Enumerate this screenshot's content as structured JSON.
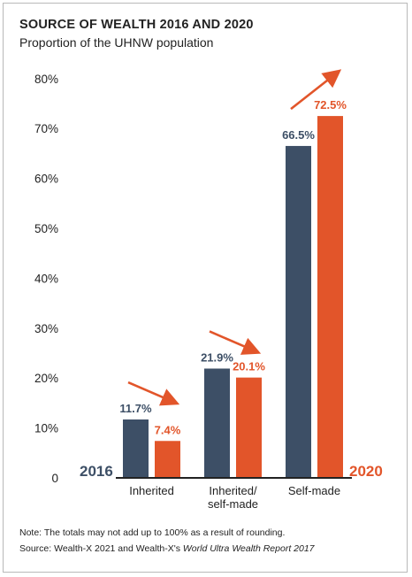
{
  "title": "SOURCE OF WEALTH 2016 AND 2020",
  "subtitle": "Proportion of the UHNW population",
  "note": "Note: The totals may not add up to 100% as a result of rounding.",
  "source_prefix": "Source: Wealth-X 2021 and Wealth-X's ",
  "source_italic": "World Ultra Wealth Report 2017",
  "colors": {
    "series_2016": "#3d4f66",
    "series_2020": "#e2552a",
    "axis": "#222222",
    "text": "#222222"
  },
  "chart_data": {
    "type": "bar",
    "categories": [
      "Inherited",
      "Inherited/\nself-made",
      "Self-made"
    ],
    "series": [
      {
        "name": "2016",
        "values": [
          11.7,
          21.9,
          66.5
        ],
        "labels": [
          "11.7%",
          "21.9%",
          "66.5%"
        ],
        "color": "#3d4f66"
      },
      {
        "name": "2020",
        "values": [
          7.4,
          20.1,
          72.5
        ],
        "labels": [
          "7.4%",
          "20.1%",
          "72.5%"
        ],
        "color": "#e2552a"
      }
    ],
    "ylim": [
      0,
      80
    ],
    "yticks": [
      "0",
      "10%",
      "20%",
      "30%",
      "40%",
      "50%",
      "60%",
      "70%",
      "80%"
    ],
    "xlabel": "",
    "ylabel": "",
    "grid": false,
    "trend_arrows": [
      "down",
      "down",
      "up"
    ]
  }
}
